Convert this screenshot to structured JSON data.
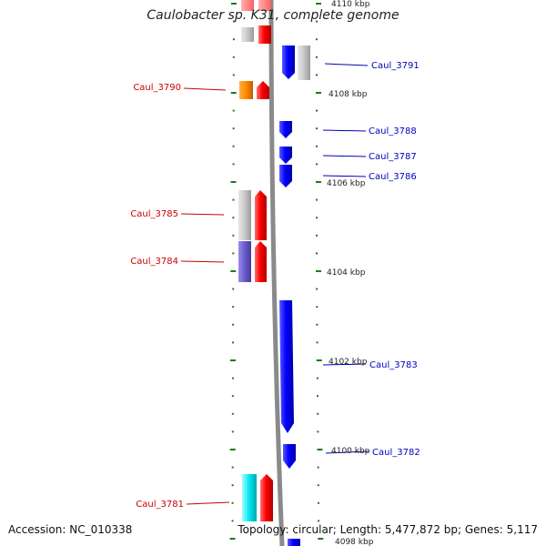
{
  "title": "Caulobacter sp. K31, complete genome",
  "accession_text": "Accession: NC_010338",
  "summary_text": "Topology: circular; Length: 5,477,872 bp; Genes: 5,117",
  "colors": {
    "backbone": "#8a8a8a",
    "tick": "#1f7a1f",
    "forward_label": "#cc0000",
    "reverse_label": "#0000bb",
    "cds_forward": "#ff0000",
    "cds_reverse": "#0000ff",
    "orange_feature": "#ff8800",
    "gray_feature": "#c0c0c0",
    "purple_feature": "#6a5acd",
    "cyan_feature": "#00e5ee"
  },
  "kbp_labels": [
    "4110 kbp",
    "4108 kbp",
    "4106 kbp",
    "4104 kbp",
    "4102 kbp",
    "4100 kbp",
    "4098 kbp"
  ],
  "forward_genes": [
    "Caul_3790",
    "Caul_3785",
    "Caul_3784",
    "Caul_3781"
  ],
  "reverse_genes": [
    "Caul_3791",
    "Caul_3788",
    "Caul_3787",
    "Caul_3786",
    "Caul_3783",
    "Caul_3782"
  ]
}
